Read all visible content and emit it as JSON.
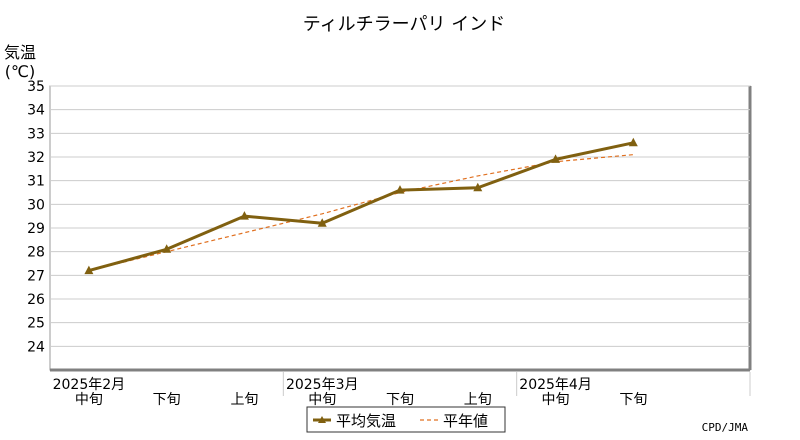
{
  "chart_data": {
    "type": "line",
    "title": "ティルチラーパリ インド",
    "ylabel_line1": "気温",
    "ylabel_line2": "(℃)",
    "ylim": [
      23,
      35
    ],
    "yticks": [
      24,
      25,
      26,
      27,
      28,
      29,
      30,
      31,
      32,
      33,
      34,
      35
    ],
    "grid": true,
    "month_labels": [
      "2025年2月",
      "2025年3月",
      "2025年4月"
    ],
    "categories": [
      "中旬",
      "下旬",
      "上旬",
      "中旬",
      "下旬",
      "上旬",
      "中旬",
      "下旬"
    ],
    "series": [
      {
        "name": "平均気温",
        "values": [
          27.2,
          28.1,
          29.5,
          29.2,
          30.6,
          30.7,
          31.9,
          32.6
        ],
        "color": "#806010",
        "marker": "triangle"
      },
      {
        "name": "平年値",
        "values": [
          27.2,
          28.0,
          28.8,
          29.6,
          30.5,
          31.2,
          31.8,
          32.1
        ],
        "color": "#e07020",
        "style": "dashed"
      }
    ],
    "legend_placement": "bottom-center",
    "source": "CPD/JMA"
  }
}
